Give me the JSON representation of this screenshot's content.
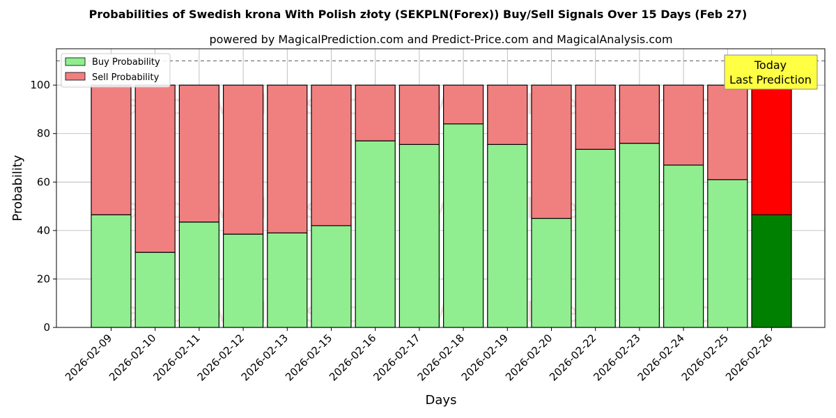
{
  "chart_data": {
    "type": "bar",
    "stacked": true,
    "title": "Probabilities of Swedish krona With Polish złoty (SEKPLN(Forex)) Buy/Sell Signals Over 15 Days (Feb 27)",
    "subtitle": "powered by MagicalPrediction.com and Predict-Price.com and MagicalAnalysis.com",
    "xlabel": "Days",
    "ylabel": "Probability",
    "ylim": [
      0,
      115
    ],
    "yticks": [
      0,
      20,
      40,
      60,
      80,
      100
    ],
    "reference_line": 110,
    "grid": true,
    "legend_position": "top-left",
    "categories": [
      "2026-02-09",
      "2026-02-10",
      "2026-02-11",
      "2026-02-12",
      "2026-02-13",
      "2026-02-15",
      "2026-02-16",
      "2026-02-17",
      "2026-02-18",
      "2026-02-19",
      "2026-02-20",
      "2026-02-22",
      "2026-02-23",
      "2026-02-24",
      "2026-02-25",
      "2026-02-26"
    ],
    "series": [
      {
        "name": "Buy Probability",
        "color": "#90ee90",
        "highlight_color": "#008000",
        "values": [
          46.5,
          31.0,
          43.5,
          38.5,
          39.0,
          42.0,
          77.0,
          75.5,
          84.0,
          75.5,
          45.0,
          73.5,
          76.0,
          67.0,
          61.0,
          46.5
        ]
      },
      {
        "name": "Sell Probability",
        "color": "#f08080",
        "highlight_color": "#ff0000",
        "values": [
          53.5,
          69.0,
          56.5,
          61.5,
          61.0,
          58.0,
          23.0,
          24.5,
          16.0,
          24.5,
          55.0,
          26.5,
          24.0,
          33.0,
          39.0,
          53.5
        ]
      }
    ],
    "highlight_index": 15,
    "annotation": {
      "line1": "Today",
      "line2": "Last Prediction",
      "bg": "#ffff44"
    },
    "watermarks": [
      "MagicalAnalysis.com",
      "MagicalPrediction.com"
    ]
  }
}
